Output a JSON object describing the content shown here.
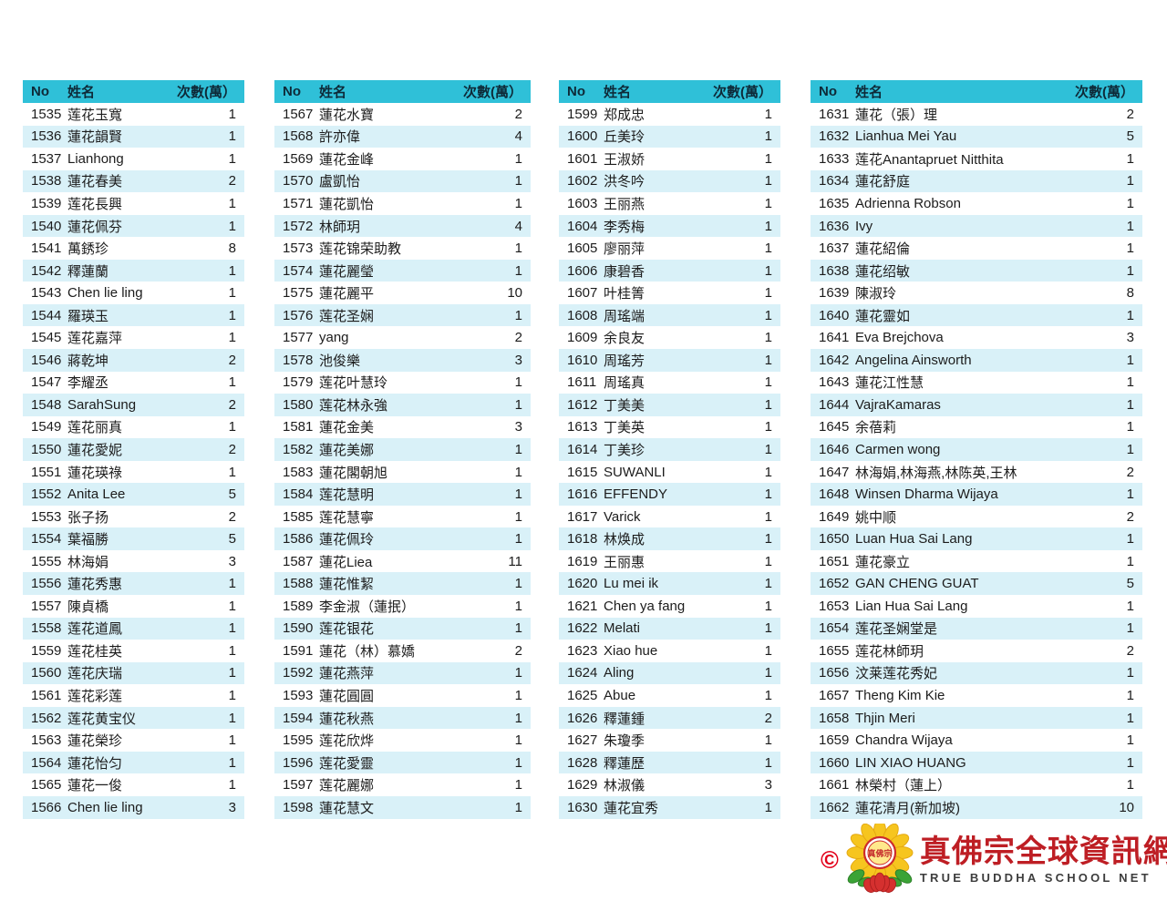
{
  "table": {
    "headers": {
      "no": "No",
      "name": "姓名",
      "count": "次數(萬）"
    },
    "columns": [
      {
        "rows": [
          {
            "no": "1535",
            "name": "莲花玉寬",
            "count": "1"
          },
          {
            "no": "1536",
            "name": "蓮花韻賢",
            "count": "1"
          },
          {
            "no": "1537",
            "name": "Lianhong",
            "count": "1"
          },
          {
            "no": "1538",
            "name": "蓮花春美",
            "count": "2"
          },
          {
            "no": "1539",
            "name": "莲花長興",
            "count": "1"
          },
          {
            "no": "1540",
            "name": "蓮花佩芬",
            "count": "1"
          },
          {
            "no": "1541",
            "name": "萬銹珍",
            "count": "8"
          },
          {
            "no": "1542",
            "name": "釋蓮蘭",
            "count": "1"
          },
          {
            "no": "1543",
            "name": "Chen lie ling",
            "count": "1"
          },
          {
            "no": "1544",
            "name": "羅瑛玉",
            "count": "1"
          },
          {
            "no": "1545",
            "name": "莲花嘉萍",
            "count": "1"
          },
          {
            "no": "1546",
            "name": "蔣乾坤",
            "count": "2"
          },
          {
            "no": "1547",
            "name": "李耀丞",
            "count": "1"
          },
          {
            "no": "1548",
            "name": "SarahSung",
            "count": "2"
          },
          {
            "no": "1549",
            "name": "莲花丽真",
            "count": "1"
          },
          {
            "no": "1550",
            "name": "蓮花愛妮",
            "count": "2"
          },
          {
            "no": "1551",
            "name": "蓮花瑛祿",
            "count": "1"
          },
          {
            "no": "1552",
            "name": "Anita Lee",
            "count": "5"
          },
          {
            "no": "1553",
            "name": "张子扬",
            "count": "2"
          },
          {
            "no": "1554",
            "name": "葉福勝",
            "count": "5"
          },
          {
            "no": "1555",
            "name": "林海娟",
            "count": "3"
          },
          {
            "no": "1556",
            "name": "蓮花秀惠",
            "count": "1"
          },
          {
            "no": "1557",
            "name": "陳貞橋",
            "count": "1"
          },
          {
            "no": "1558",
            "name": "莲花道鳳",
            "count": "1"
          },
          {
            "no": "1559",
            "name": "莲花桂英",
            "count": "1"
          },
          {
            "no": "1560",
            "name": "莲花庆瑞",
            "count": "1"
          },
          {
            "no": "1561",
            "name": "莲花彩莲",
            "count": "1"
          },
          {
            "no": "1562",
            "name": "莲花黄宝仪",
            "count": "1"
          },
          {
            "no": "1563",
            "name": "蓮花榮珍",
            "count": "1"
          },
          {
            "no": "1564",
            "name": "蓮花怡匀",
            "count": "1"
          },
          {
            "no": "1565",
            "name": "蓮花一俊",
            "count": "1"
          },
          {
            "no": "1566",
            "name": "Chen lie ling",
            "count": "3"
          }
        ]
      },
      {
        "rows": [
          {
            "no": "1567",
            "name": "蓮花水寶",
            "count": "2"
          },
          {
            "no": "1568",
            "name": "許亦偉",
            "count": "4"
          },
          {
            "no": "1569",
            "name": "蓮花金峰",
            "count": "1"
          },
          {
            "no": "1570",
            "name": "盧凱怡",
            "count": "1"
          },
          {
            "no": "1571",
            "name": "蓮花凱怡",
            "count": "1"
          },
          {
            "no": "1572",
            "name": "林師玥",
            "count": "4"
          },
          {
            "no": "1573",
            "name": "莲花锦荣助教",
            "count": "1"
          },
          {
            "no": "1574",
            "name": "蓮花麗瑩",
            "count": "1"
          },
          {
            "no": "1575",
            "name": "蓮花麗平",
            "count": "10"
          },
          {
            "no": "1576",
            "name": "莲花圣娴",
            "count": "1"
          },
          {
            "no": "1577",
            "name": "yang",
            "count": "2"
          },
          {
            "no": "1578",
            "name": "池俊樂",
            "count": "3"
          },
          {
            "no": "1579",
            "name": "莲花叶慧玲",
            "count": "1"
          },
          {
            "no": "1580",
            "name": "莲花林永強",
            "count": "1"
          },
          {
            "no": "1581",
            "name": "蓮花金美",
            "count": "3"
          },
          {
            "no": "1582",
            "name": "蓮花美娜",
            "count": "1"
          },
          {
            "no": "1583",
            "name": "蓮花閣朝旭",
            "count": "1"
          },
          {
            "no": "1584",
            "name": "莲花慧明",
            "count": "1"
          },
          {
            "no": "1585",
            "name": "莲花慧寧",
            "count": "1"
          },
          {
            "no": "1586",
            "name": "蓮花佩玲",
            "count": "1"
          },
          {
            "no": "1587",
            "name": "蓮花Liea",
            "count": "11"
          },
          {
            "no": "1588",
            "name": "蓮花惟絜",
            "count": "1"
          },
          {
            "no": "1589",
            "name": "李金淑（蓮抿）",
            "count": "1"
          },
          {
            "no": "1590",
            "name": "莲花银花",
            "count": "1"
          },
          {
            "no": "1591",
            "name": "蓮花（林）慕嬌",
            "count": "2"
          },
          {
            "no": "1592",
            "name": "蓮花燕萍",
            "count": "1"
          },
          {
            "no": "1593",
            "name": "蓮花圓圓",
            "count": "1"
          },
          {
            "no": "1594",
            "name": "蓮花秋燕",
            "count": "1"
          },
          {
            "no": "1595",
            "name": "莲花欣烨",
            "count": "1"
          },
          {
            "no": "1596",
            "name": "莲花愛靈",
            "count": "1"
          },
          {
            "no": "1597",
            "name": "莲花麗娜",
            "count": "1"
          },
          {
            "no": "1598",
            "name": "蓮花慧文",
            "count": "1"
          }
        ]
      },
      {
        "rows": [
          {
            "no": "1599",
            "name": "郑成忠",
            "count": "1"
          },
          {
            "no": "1600",
            "name": "丘美玲",
            "count": "1"
          },
          {
            "no": "1601",
            "name": "王淑娇",
            "count": "1"
          },
          {
            "no": "1602",
            "name": "洪冬吟",
            "count": "1"
          },
          {
            "no": "1603",
            "name": "王丽燕",
            "count": "1"
          },
          {
            "no": "1604",
            "name": "李秀梅",
            "count": "1"
          },
          {
            "no": "1605",
            "name": "廖丽萍",
            "count": "1"
          },
          {
            "no": "1606",
            "name": "康碧香",
            "count": "1"
          },
          {
            "no": "1607",
            "name": "叶桂箐",
            "count": "1"
          },
          {
            "no": "1608",
            "name": "周瑤端",
            "count": "1"
          },
          {
            "no": "1609",
            "name": "余良友",
            "count": "1"
          },
          {
            "no": "1610",
            "name": "周瑤芳",
            "count": "1"
          },
          {
            "no": "1611",
            "name": "周瑤真",
            "count": "1"
          },
          {
            "no": "1612",
            "name": "丁美美",
            "count": "1"
          },
          {
            "no": "1613",
            "name": "丁美英",
            "count": "1"
          },
          {
            "no": "1614",
            "name": "丁美珍",
            "count": "1"
          },
          {
            "no": "1615",
            "name": "SUWANLI",
            "count": "1"
          },
          {
            "no": "1616",
            "name": "EFFENDY",
            "count": "1"
          },
          {
            "no": "1617",
            "name": "Varick",
            "count": "1"
          },
          {
            "no": "1618",
            "name": "林焕成",
            "count": "1"
          },
          {
            "no": "1619",
            "name": "王丽惠",
            "count": "1"
          },
          {
            "no": "1620",
            "name": "Lu mei ik",
            "count": "1"
          },
          {
            "no": "1621",
            "name": "Chen ya fang",
            "count": "1"
          },
          {
            "no": "1622",
            "name": "Melati",
            "count": "1"
          },
          {
            "no": "1623",
            "name": "Xiao hue",
            "count": "1"
          },
          {
            "no": "1624",
            "name": "Aling",
            "count": "1"
          },
          {
            "no": "1625",
            "name": "Abue",
            "count": "1"
          },
          {
            "no": "1626",
            "name": "釋蓮鍾",
            "count": "2"
          },
          {
            "no": "1627",
            "name": "朱瓊季",
            "count": "1"
          },
          {
            "no": "1628",
            "name": "釋蓮歷",
            "count": "1"
          },
          {
            "no": "1629",
            "name": "林淑儀",
            "count": "3"
          },
          {
            "no": "1630",
            "name": "蓮花宜秀",
            "count": "1"
          }
        ]
      },
      {
        "rows": [
          {
            "no": "1631",
            "name": "蓮花（張）理",
            "count": "2"
          },
          {
            "no": "1632",
            "name": "Lianhua Mei Yau",
            "count": "5"
          },
          {
            "no": "1633",
            "name": "莲花Anantapruet Nitthita",
            "count": "1"
          },
          {
            "no": "1634",
            "name": "蓮花舒庭",
            "count": "1"
          },
          {
            "no": "1635",
            "name": "Adrienna Robson",
            "count": "1"
          },
          {
            "no": "1636",
            "name": "Ivy",
            "count": "1"
          },
          {
            "no": "1637",
            "name": "蓮花紹倫",
            "count": "1"
          },
          {
            "no": "1638",
            "name": "蓮花绍敏",
            "count": "1"
          },
          {
            "no": "1639",
            "name": "陳淑玲",
            "count": "8"
          },
          {
            "no": "1640",
            "name": "蓮花靈如",
            "count": "1"
          },
          {
            "no": "1641",
            "name": "Eva Brejchova",
            "count": "3"
          },
          {
            "no": "1642",
            "name": "Angelina Ainsworth",
            "count": "1"
          },
          {
            "no": "1643",
            "name": "蓮花江性慧",
            "count": "1"
          },
          {
            "no": "1644",
            "name": "VajraKamaras",
            "count": "1"
          },
          {
            "no": "1645",
            "name": "余蓓莉",
            "count": "1"
          },
          {
            "no": "1646",
            "name": "Carmen wong",
            "count": "1"
          },
          {
            "no": "1647",
            "name": "林海娟,林海燕,林陈英,王林",
            "count": "2"
          },
          {
            "no": "1648",
            "name": "Winsen Dharma Wijaya",
            "count": "1"
          },
          {
            "no": "1649",
            "name": "姚中顺",
            "count": "2"
          },
          {
            "no": "1650",
            "name": "Luan Hua Sai Lang",
            "count": "1"
          },
          {
            "no": "1651",
            "name": "蓮花豪立",
            "count": "1"
          },
          {
            "no": "1652",
            "name": "GAN CHENG GUAT",
            "count": "5"
          },
          {
            "no": "1653",
            "name": "Lian Hua Sai Lang",
            "count": "1"
          },
          {
            "no": "1654",
            "name": "莲花圣娴堂是",
            "count": "1"
          },
          {
            "no": "1655",
            "name": "莲花林師玥",
            "count": "2"
          },
          {
            "no": "1656",
            "name": "汶莱莲花秀妃",
            "count": "1"
          },
          {
            "no": "1657",
            "name": "Theng Kim Kie",
            "count": "1"
          },
          {
            "no": "1658",
            "name": "Thjin Meri",
            "count": "1"
          },
          {
            "no": "1659",
            "name": "Chandra Wijaya",
            "count": "1"
          },
          {
            "no": "1660",
            "name": "LIN XIAO HUANG",
            "count": "1"
          },
          {
            "no": "1661",
            "name": "林榮村（蓮上）",
            "count": "1"
          },
          {
            "no": "1662",
            "name": "蓮花清月(新加坡)",
            "count": "10"
          }
        ]
      }
    ]
  },
  "footer": {
    "copyright_symbol": "©",
    "seal_text": "真佛宗",
    "site_title_zh": "真佛宗全球資訊網",
    "site_title_en": "TRUE BUDDHA SCHOOL NET"
  },
  "colors": {
    "header_bg": "#2fc0d8",
    "row_alt_bg": "#d9f1f8",
    "title_red": "#be1e24",
    "copyright_red": "#e2001a",
    "subtitle_gray": "#3d3d3d"
  }
}
